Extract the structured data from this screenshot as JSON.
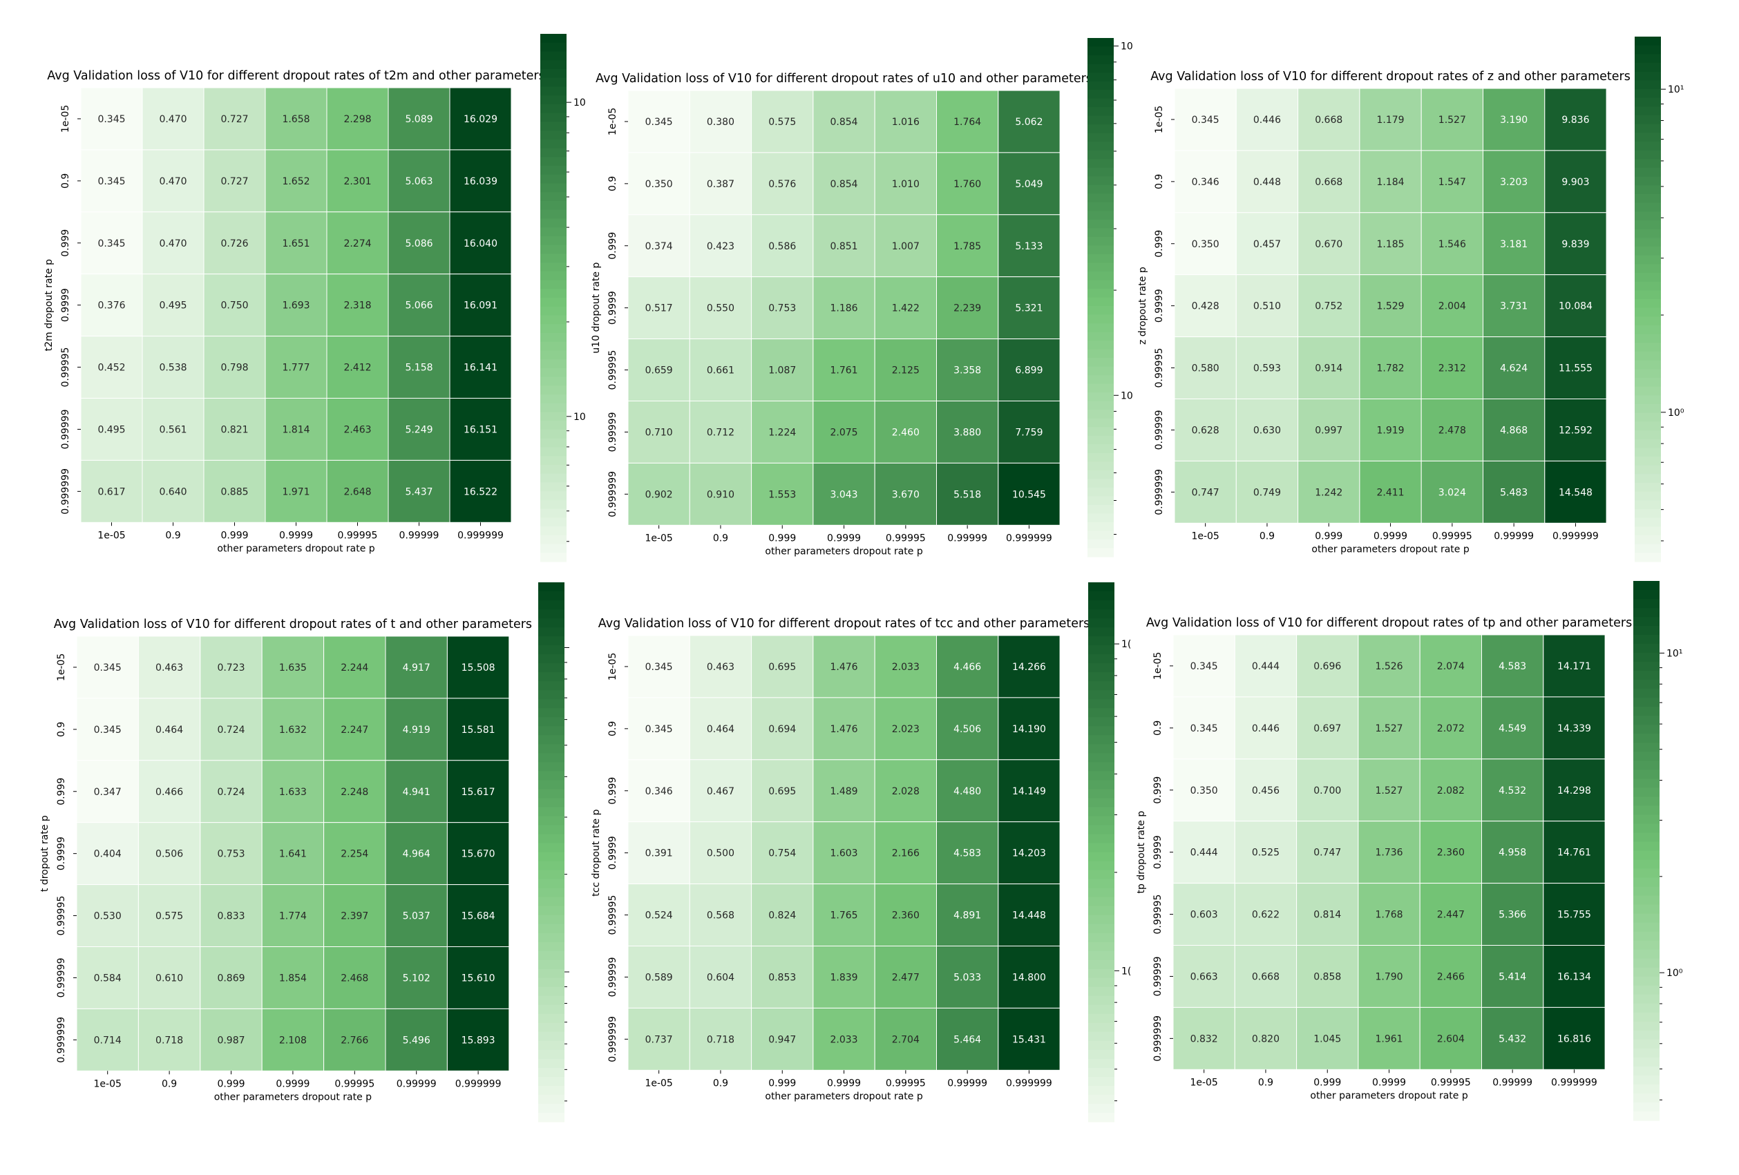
{
  "figure_title": "",
  "colormap": {
    "name": "Greens",
    "light": "#f7fcf5",
    "mid": "#74c476",
    "dark": "#00441b"
  },
  "chart_data": [
    {
      "type": "heatmap",
      "title": "Avg Validation loss of V10 for different dropout rates of t2m and other parameters",
      "xlabel": "other parameters dropout rate p",
      "ylabel": "t2m dropout rate p",
      "x": [
        "1e-05",
        "0.9",
        "0.999",
        "0.9999",
        "0.99995",
        "0.99999",
        "0.999999"
      ],
      "y": [
        "1e-05",
        "0.9",
        "0.999",
        "0.9999",
        "0.99995",
        "0.99999",
        "0.999999"
      ],
      "values": [
        [
          0.345,
          0.47,
          0.727,
          1.658,
          2.298,
          5.089,
          16.029
        ],
        [
          0.345,
          0.47,
          0.727,
          1.652,
          2.301,
          5.063,
          16.039
        ],
        [
          0.345,
          0.47,
          0.726,
          1.651,
          2.274,
          5.086,
          16.04
        ],
        [
          0.376,
          0.495,
          0.75,
          1.693,
          2.318,
          5.066,
          16.091
        ],
        [
          0.452,
          0.538,
          0.798,
          1.777,
          2.412,
          5.158,
          16.141
        ],
        [
          0.495,
          0.561,
          0.821,
          1.814,
          2.463,
          5.249,
          16.151
        ],
        [
          0.617,
          0.64,
          0.885,
          1.971,
          2.648,
          5.437,
          16.522
        ]
      ],
      "colorbar": {
        "scale": "log",
        "tick_labels": [
          "10",
          "10"
        ]
      }
    },
    {
      "type": "heatmap",
      "title": "Avg Validation loss of V10 for different dropout rates of u10 and other parameters",
      "xlabel": "other parameters dropout rate p",
      "ylabel": "u10 dropout rate p",
      "x": [
        "1e-05",
        "0.9",
        "0.999",
        "0.9999",
        "0.99995",
        "0.99999",
        "0.999999"
      ],
      "y": [
        "1e-05",
        "0.9",
        "0.999",
        "0.9999",
        "0.99995",
        "0.99999",
        "0.999999"
      ],
      "values": [
        [
          0.345,
          0.38,
          0.575,
          0.854,
          1.016,
          1.764,
          5.062
        ],
        [
          0.35,
          0.387,
          0.576,
          0.854,
          1.01,
          1.76,
          5.049
        ],
        [
          0.374,
          0.423,
          0.586,
          0.851,
          1.007,
          1.785,
          5.133
        ],
        [
          0.517,
          0.55,
          0.753,
          1.186,
          1.422,
          2.239,
          5.321
        ],
        [
          0.659,
          0.661,
          1.087,
          1.761,
          2.125,
          3.358,
          6.899
        ],
        [
          0.71,
          0.712,
          1.224,
          2.075,
          2.46,
          3.88,
          7.759
        ],
        [
          0.902,
          0.91,
          1.553,
          3.043,
          3.67,
          5.518,
          10.545
        ]
      ],
      "colorbar": {
        "scale": "log",
        "tick_labels": [
          "10",
          "10"
        ]
      }
    },
    {
      "type": "heatmap",
      "title": "Avg Validation loss of V10 for different dropout rates of z and other parameters",
      "xlabel": "other parameters dropout rate p",
      "ylabel": "z dropout rate p",
      "x": [
        "1e-05",
        "0.9",
        "0.999",
        "0.9999",
        "0.99995",
        "0.99999",
        "0.999999"
      ],
      "y": [
        "1e-05",
        "0.9",
        "0.999",
        "0.9999",
        "0.99995",
        "0.99999",
        "0.999999"
      ],
      "values": [
        [
          0.345,
          0.446,
          0.668,
          1.179,
          1.527,
          3.19,
          9.836
        ],
        [
          0.346,
          0.448,
          0.668,
          1.184,
          1.547,
          3.203,
          9.903
        ],
        [
          0.35,
          0.457,
          0.67,
          1.185,
          1.546,
          3.181,
          9.839
        ],
        [
          0.428,
          0.51,
          0.752,
          1.529,
          2.004,
          3.731,
          10.084
        ],
        [
          0.58,
          0.593,
          0.914,
          1.782,
          2.312,
          4.624,
          11.555
        ],
        [
          0.628,
          0.63,
          0.997,
          1.919,
          2.478,
          4.868,
          12.592
        ],
        [
          0.747,
          0.749,
          1.242,
          2.411,
          3.024,
          5.483,
          14.548
        ]
      ],
      "colorbar": {
        "scale": "log",
        "tick_labels": [
          "10¹",
          "10⁰"
        ]
      }
    },
    {
      "type": "heatmap",
      "title": "Avg Validation loss of V10 for different dropout rates of t and other parameters",
      "xlabel": "other parameters dropout rate p",
      "ylabel": "t dropout rate p",
      "x": [
        "1e-05",
        "0.9",
        "0.999",
        "0.9999",
        "0.99995",
        "0.99999",
        "0.999999"
      ],
      "y": [
        "1e-05",
        "0.9",
        "0.999",
        "0.9999",
        "0.99995",
        "0.99999",
        "0.999999"
      ],
      "values": [
        [
          0.345,
          0.463,
          0.723,
          1.635,
          2.244,
          4.917,
          15.508
        ],
        [
          0.345,
          0.464,
          0.724,
          1.632,
          2.247,
          4.919,
          15.581
        ],
        [
          0.347,
          0.466,
          0.724,
          1.633,
          2.248,
          4.941,
          15.617
        ],
        [
          0.404,
          0.506,
          0.753,
          1.641,
          2.254,
          4.964,
          15.67
        ],
        [
          0.53,
          0.575,
          0.833,
          1.774,
          2.397,
          5.037,
          15.684
        ],
        [
          0.584,
          0.61,
          0.869,
          1.854,
          2.468,
          5.102,
          15.61
        ],
        [
          0.714,
          0.718,
          0.987,
          2.108,
          2.766,
          5.496,
          15.893
        ]
      ],
      "colorbar": {
        "scale": "log",
        "tick_labels": []
      }
    },
    {
      "type": "heatmap",
      "title": "Avg Validation loss of V10 for different dropout rates of tcc and other parameters",
      "xlabel": "other parameters dropout rate p",
      "ylabel": "tcc dropout rate p",
      "x": [
        "1e-05",
        "0.9",
        "0.999",
        "0.9999",
        "0.99995",
        "0.99999",
        "0.999999"
      ],
      "y": [
        "1e-05",
        "0.9",
        "0.999",
        "0.9999",
        "0.99995",
        "0.99999",
        "0.999999"
      ],
      "values": [
        [
          0.345,
          0.463,
          0.695,
          1.476,
          2.033,
          4.466,
          14.266
        ],
        [
          0.345,
          0.464,
          0.694,
          1.476,
          2.023,
          4.506,
          14.19
        ],
        [
          0.346,
          0.467,
          0.695,
          1.489,
          2.028,
          4.48,
          14.149
        ],
        [
          0.391,
          0.5,
          0.754,
          1.603,
          2.166,
          4.583,
          14.203
        ],
        [
          0.524,
          0.568,
          0.824,
          1.765,
          2.36,
          4.891,
          14.448
        ],
        [
          0.589,
          0.604,
          0.853,
          1.839,
          2.477,
          5.033,
          14.8
        ],
        [
          0.737,
          0.718,
          0.947,
          2.033,
          2.704,
          5.464,
          15.431
        ]
      ],
      "colorbar": {
        "scale": "log",
        "tick_labels": [
          "1(",
          "1("
        ]
      }
    },
    {
      "type": "heatmap",
      "title": "Avg Validation loss of V10 for different dropout rates of tp and other parameters",
      "xlabel": "other parameters dropout rate p",
      "ylabel": "tp dropout rate p",
      "x": [
        "1e-05",
        "0.9",
        "0.999",
        "0.9999",
        "0.99995",
        "0.99999",
        "0.999999"
      ],
      "y": [
        "1e-05",
        "0.9",
        "0.999",
        "0.9999",
        "0.99995",
        "0.99999",
        "0.999999"
      ],
      "values": [
        [
          0.345,
          0.444,
          0.696,
          1.526,
          2.074,
          4.583,
          14.171
        ],
        [
          0.345,
          0.446,
          0.697,
          1.527,
          2.072,
          4.549,
          14.339
        ],
        [
          0.35,
          0.456,
          0.7,
          1.527,
          2.082,
          4.532,
          14.298
        ],
        [
          0.444,
          0.525,
          0.747,
          1.736,
          2.36,
          4.958,
          14.761
        ],
        [
          0.603,
          0.622,
          0.814,
          1.768,
          2.447,
          5.366,
          15.755
        ],
        [
          0.663,
          0.668,
          0.858,
          1.79,
          2.466,
          5.414,
          16.134
        ],
        [
          0.832,
          0.82,
          1.045,
          1.961,
          2.604,
          5.432,
          16.816
        ]
      ],
      "colorbar": {
        "scale": "log",
        "tick_labels": [
          "10¹",
          "10⁰"
        ]
      }
    }
  ]
}
